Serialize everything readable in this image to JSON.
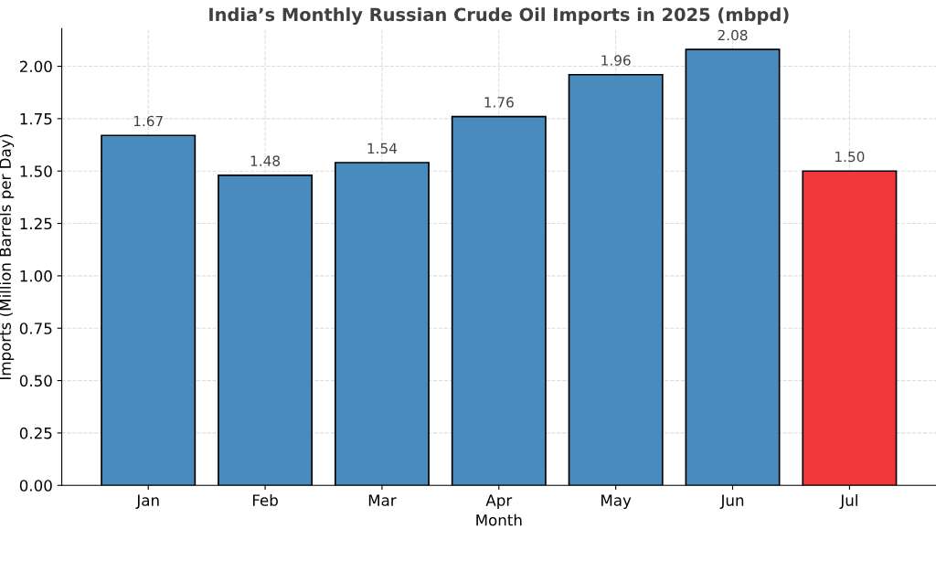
{
  "chart_data": {
    "type": "bar",
    "title": "India’s Monthly Russian Crude Oil Imports in 2025 (mbpd)",
    "xlabel": "Month",
    "ylabel": "Imports (Million Barrels per Day)",
    "categories": [
      "Jan",
      "Feb",
      "Mar",
      "Apr",
      "May",
      "Jun",
      "Jul"
    ],
    "values": [
      1.67,
      1.48,
      1.54,
      1.76,
      1.96,
      2.08,
      1.5
    ],
    "colors": [
      "#4a8bbd",
      "#4a8bbd",
      "#4a8bbd",
      "#4a8bbd",
      "#4a8bbd",
      "#4a8bbd",
      "#f0383c"
    ],
    "ylim": [
      0,
      2.18
    ],
    "yticks": [
      {
        "value": 0,
        "label": "0.00"
      },
      {
        "value": 0.25,
        "label": "0.25"
      },
      {
        "value": 0.5,
        "label": "0.50"
      },
      {
        "value": 0.75,
        "label": "0.75"
      },
      {
        "value": 1.0,
        "label": "1.00"
      },
      {
        "value": 1.25,
        "label": "1.25"
      },
      {
        "value": 1.5,
        "label": "1.50"
      },
      {
        "value": 1.75,
        "label": "1.75"
      },
      {
        "value": 2.0,
        "label": "2.00"
      }
    ],
    "grid": true,
    "value_labels": [
      "1.67",
      "1.48",
      "1.54",
      "1.76",
      "1.96",
      "2.08",
      "1.50"
    ]
  }
}
